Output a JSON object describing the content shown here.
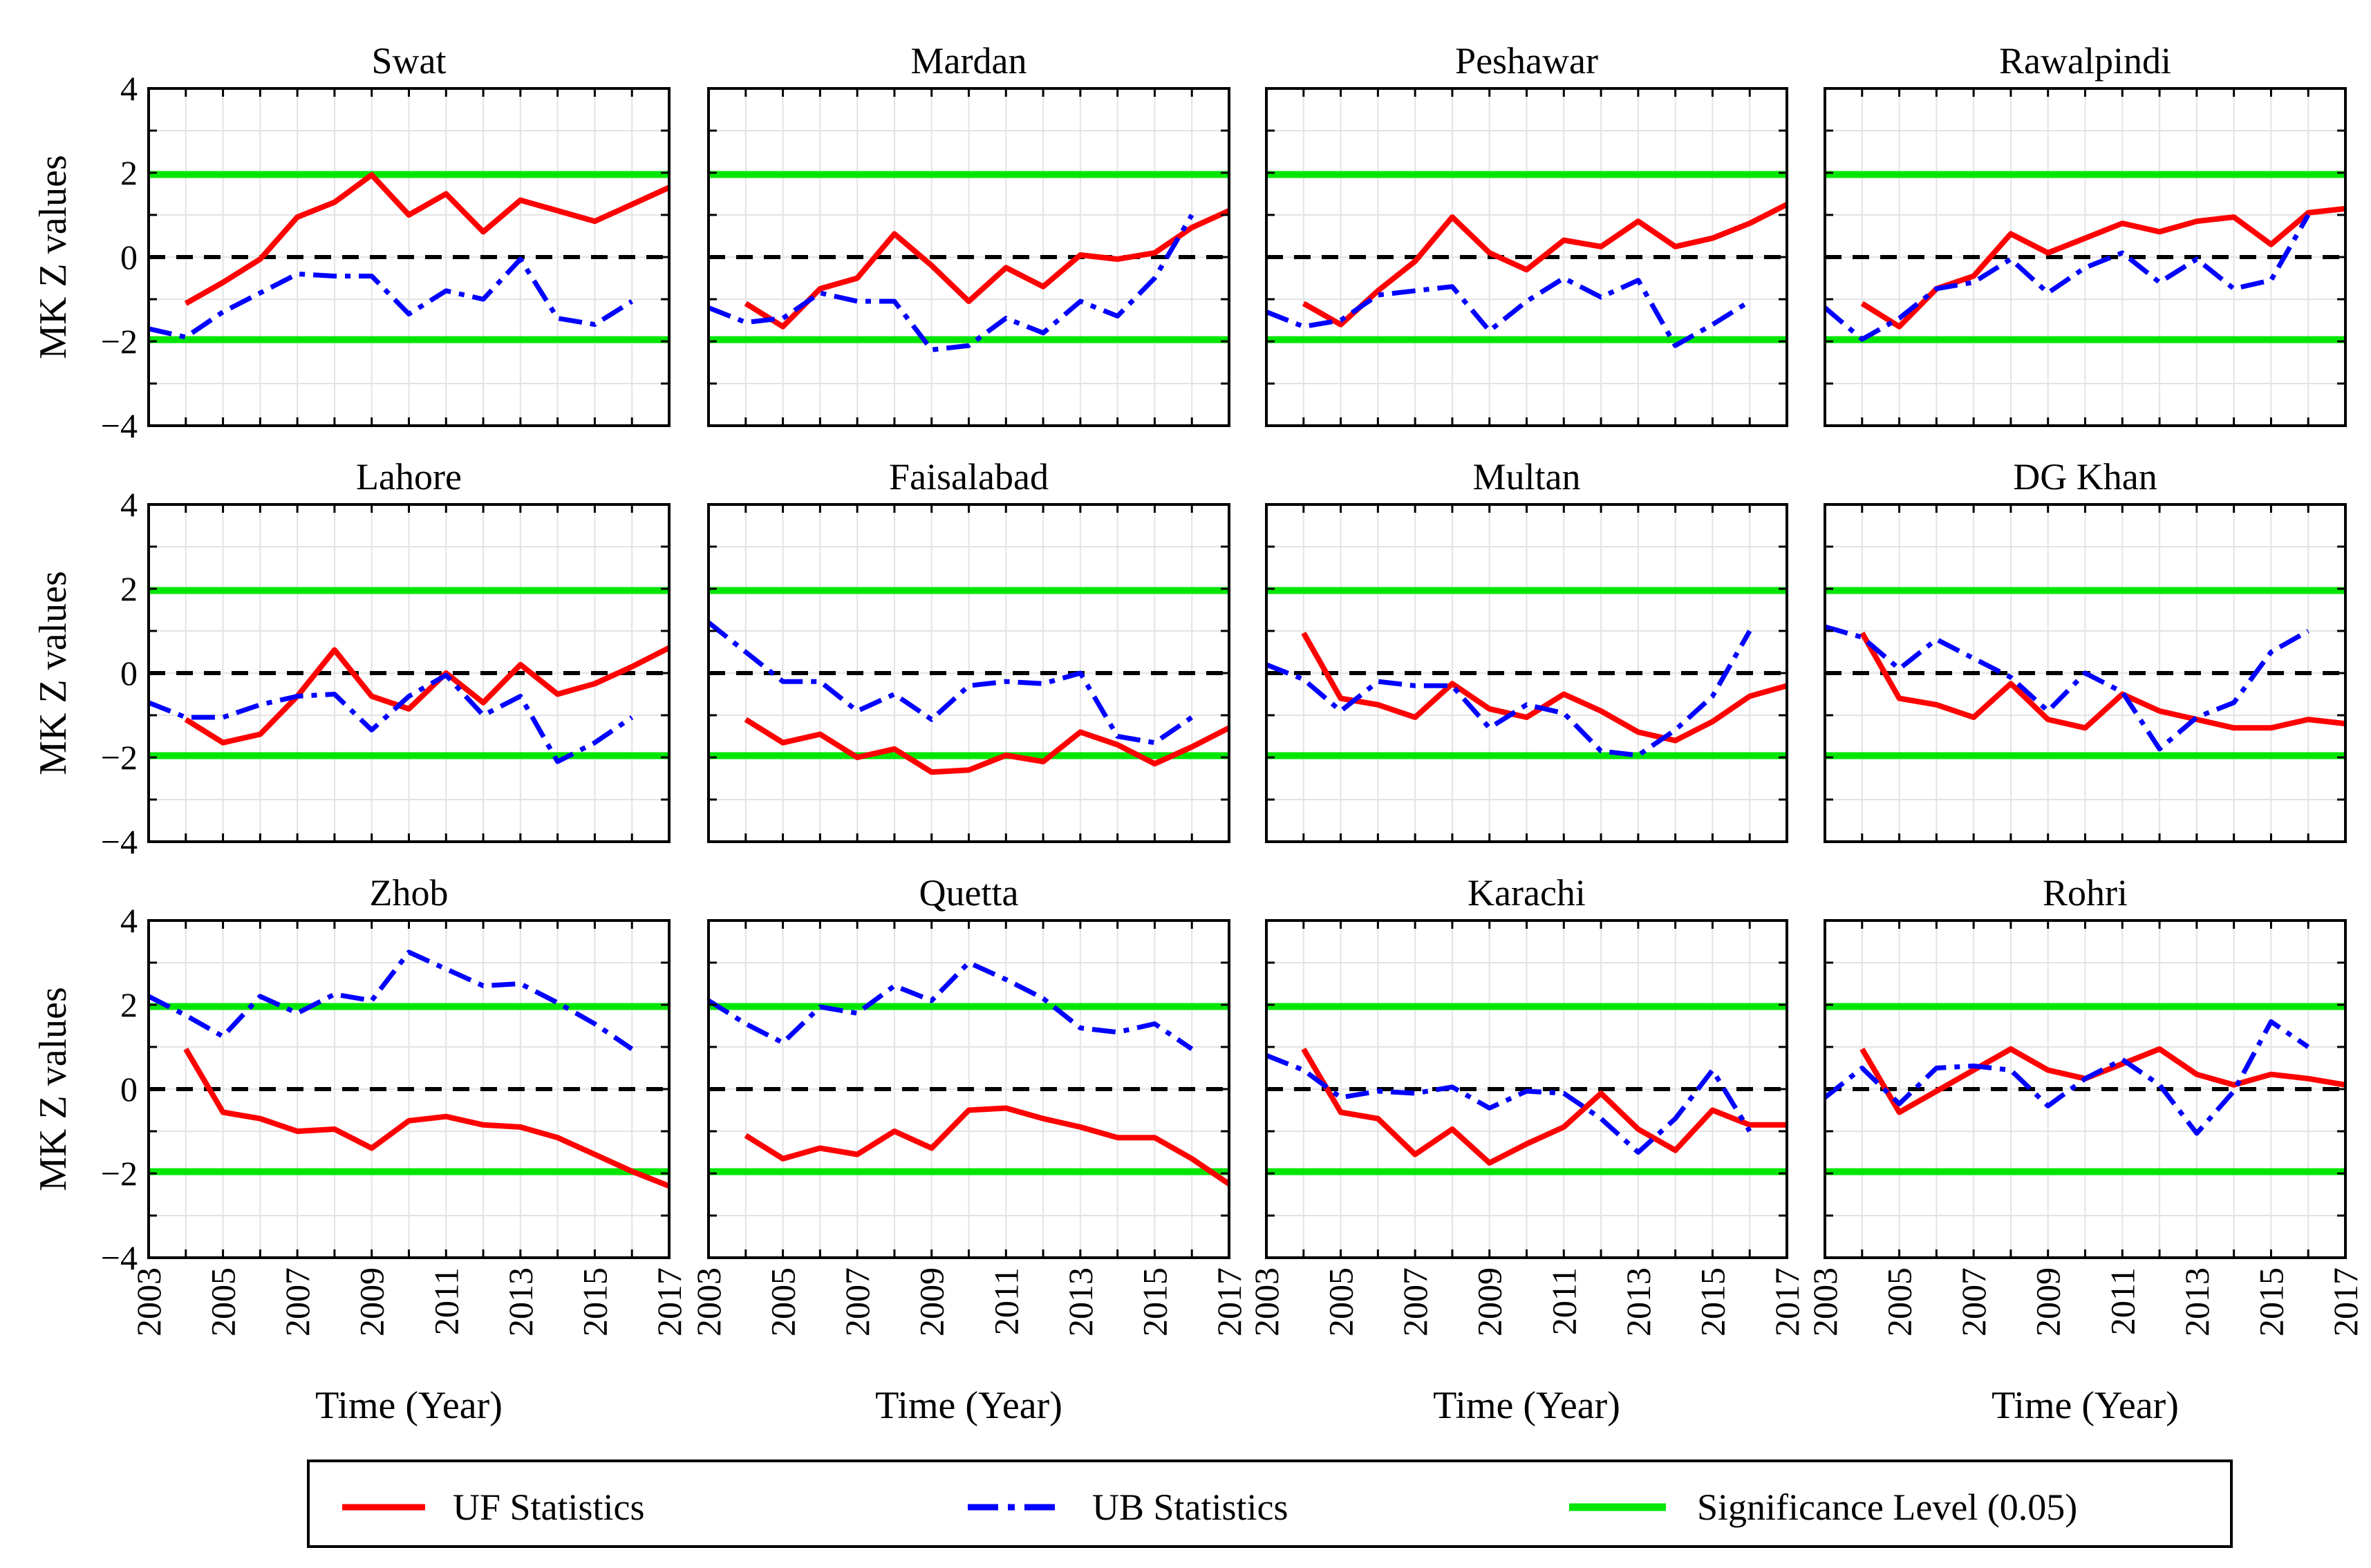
{
  "colors": {
    "uf": "#ff0000",
    "ub": "#0000ff",
    "significance": "#00e600",
    "zero": "#000000",
    "grid": "#e3e3e3",
    "frame": "#000000"
  },
  "chart_data": {
    "type": "line",
    "layout": "3x4 grid of panels",
    "ylabel": "MK Z values",
    "xlabel": "Time (Year)",
    "xlim": [
      2003,
      2017
    ],
    "ylim": [
      -4,
      4
    ],
    "x_ticks": [
      2003,
      2005,
      2007,
      2009,
      2011,
      2013,
      2015,
      2017
    ],
    "y_ticks": [
      -4,
      -2,
      0,
      2,
      4
    ],
    "y_tick_labels": [
      "−4",
      "−2",
      "0",
      "2",
      "4"
    ],
    "significance_level": 1.96,
    "legend": {
      "position": "bottom",
      "entries": [
        "UF Statistics",
        "UB Statistics",
        "Significance Level (0.05)"
      ]
    },
    "panels": [
      {
        "title": "Swat",
        "uf": {
          "x": [
            2004,
            2005,
            2006,
            2007,
            2008,
            2009,
            2010,
            2011,
            2012,
            2013,
            2014,
            2015,
            2016,
            2017
          ],
          "y": [
            -1.1,
            -0.6,
            -0.05,
            0.95,
            1.3,
            1.95,
            1.0,
            1.5,
            0.6,
            1.35,
            1.1,
            0.85,
            1.25,
            1.65
          ]
        },
        "ub": {
          "x": [
            2003,
            2004,
            2005,
            2006,
            2007,
            2008,
            2009,
            2010,
            2011,
            2012,
            2013,
            2014,
            2015,
            2016
          ],
          "y": [
            -1.7,
            -1.9,
            -1.3,
            -0.85,
            -0.4,
            -0.45,
            -0.45,
            -1.35,
            -0.8,
            -1.0,
            -0.05,
            -1.45,
            -1.6,
            -1.05
          ]
        }
      },
      {
        "title": "Mardan",
        "uf": {
          "x": [
            2004,
            2005,
            2006,
            2007,
            2008,
            2009,
            2010,
            2011,
            2012,
            2013,
            2014,
            2015,
            2016,
            2017
          ],
          "y": [
            -1.1,
            -1.65,
            -0.75,
            -0.5,
            0.55,
            -0.2,
            -1.05,
            -0.25,
            -0.7,
            0.05,
            -0.05,
            0.1,
            0.7,
            1.1
          ]
        },
        "ub": {
          "x": [
            2003,
            2004,
            2005,
            2006,
            2007,
            2008,
            2009,
            2010,
            2011,
            2012,
            2013,
            2014,
            2015,
            2016
          ],
          "y": [
            -1.2,
            -1.55,
            -1.45,
            -0.85,
            -1.05,
            -1.05,
            -2.2,
            -2.1,
            -1.45,
            -1.8,
            -1.05,
            -1.4,
            -0.5,
            1.0
          ]
        }
      },
      {
        "title": "Peshawar",
        "uf": {
          "x": [
            2004,
            2005,
            2006,
            2007,
            2008,
            2009,
            2010,
            2011,
            2012,
            2013,
            2014,
            2015,
            2016,
            2017
          ],
          "y": [
            -1.1,
            -1.6,
            -0.8,
            -0.1,
            0.95,
            0.1,
            -0.3,
            0.4,
            0.25,
            0.85,
            0.25,
            0.45,
            0.8,
            1.25
          ]
        },
        "ub": {
          "x": [
            2003,
            2004,
            2005,
            2006,
            2007,
            2008,
            2009,
            2010,
            2011,
            2012,
            2013,
            2014,
            2015,
            2016
          ],
          "y": [
            -1.3,
            -1.65,
            -1.5,
            -0.9,
            -0.8,
            -0.7,
            -1.75,
            -1.05,
            -0.5,
            -0.95,
            -0.55,
            -2.1,
            -1.6,
            -1.05
          ]
        }
      },
      {
        "title": "Rawalpindi",
        "uf": {
          "x": [
            2004,
            2005,
            2006,
            2007,
            2008,
            2009,
            2010,
            2011,
            2012,
            2013,
            2014,
            2015,
            2016,
            2017
          ],
          "y": [
            -1.1,
            -1.65,
            -0.75,
            -0.45,
            0.55,
            0.1,
            0.45,
            0.8,
            0.6,
            0.85,
            0.95,
            0.3,
            1.05,
            1.15
          ]
        },
        "ub": {
          "x": [
            2003,
            2004,
            2005,
            2006,
            2007,
            2008,
            2009,
            2010,
            2011,
            2012,
            2013,
            2014,
            2015,
            2016
          ],
          "y": [
            -1.2,
            -1.95,
            -1.45,
            -0.75,
            -0.6,
            -0.05,
            -0.85,
            -0.25,
            0.1,
            -0.6,
            -0.05,
            -0.75,
            -0.55,
            1.0
          ]
        }
      },
      {
        "title": "Lahore",
        "uf": {
          "x": [
            2004,
            2005,
            2006,
            2007,
            2008,
            2009,
            2010,
            2011,
            2012,
            2013,
            2014,
            2015,
            2016,
            2017
          ],
          "y": [
            -1.1,
            -1.65,
            -1.45,
            -0.55,
            0.55,
            -0.55,
            -0.85,
            0.0,
            -0.7,
            0.2,
            -0.5,
            -0.25,
            0.15,
            0.6
          ]
        },
        "ub": {
          "x": [
            2003,
            2004,
            2005,
            2006,
            2007,
            2008,
            2009,
            2010,
            2011,
            2012,
            2013,
            2014,
            2015,
            2016
          ],
          "y": [
            -0.7,
            -1.05,
            -1.05,
            -0.75,
            -0.55,
            -0.5,
            -1.35,
            -0.55,
            -0.05,
            -1.0,
            -0.55,
            -2.1,
            -1.65,
            -1.05
          ]
        }
      },
      {
        "title": "Faisalabad",
        "uf": {
          "x": [
            2004,
            2005,
            2006,
            2007,
            2008,
            2009,
            2010,
            2011,
            2012,
            2013,
            2014,
            2015,
            2016,
            2017
          ],
          "y": [
            -1.1,
            -1.65,
            -1.45,
            -2.0,
            -1.8,
            -2.35,
            -2.3,
            -1.95,
            -2.1,
            -1.4,
            -1.7,
            -2.15,
            -1.75,
            -1.3
          ]
        },
        "ub": {
          "x": [
            2003,
            2004,
            2005,
            2006,
            2007,
            2008,
            2009,
            2010,
            2011,
            2012,
            2013,
            2014,
            2015,
            2016
          ],
          "y": [
            1.2,
            0.5,
            -0.2,
            -0.2,
            -0.9,
            -0.5,
            -1.1,
            -0.3,
            -0.2,
            -0.25,
            0.0,
            -1.5,
            -1.65,
            -1.05
          ]
        }
      },
      {
        "title": "Multan",
        "uf": {
          "x": [
            2004,
            2005,
            2006,
            2007,
            2008,
            2009,
            2010,
            2011,
            2012,
            2013,
            2014,
            2015,
            2016,
            2017
          ],
          "y": [
            0.95,
            -0.6,
            -0.75,
            -1.05,
            -0.25,
            -0.85,
            -1.05,
            -0.5,
            -0.9,
            -1.4,
            -1.6,
            -1.15,
            -0.55,
            -0.3
          ]
        },
        "ub": {
          "x": [
            2003,
            2004,
            2005,
            2006,
            2007,
            2008,
            2009,
            2010,
            2011,
            2012,
            2013,
            2014,
            2015,
            2016
          ],
          "y": [
            0.2,
            -0.15,
            -0.9,
            -0.2,
            -0.3,
            -0.3,
            -1.3,
            -0.75,
            -0.95,
            -1.85,
            -1.95,
            -1.35,
            -0.55,
            1.0
          ]
        }
      },
      {
        "title": "DG Khan",
        "uf": {
          "x": [
            2004,
            2005,
            2006,
            2007,
            2008,
            2009,
            2010,
            2011,
            2012,
            2013,
            2014,
            2015,
            2016,
            2017
          ],
          "y": [
            0.95,
            -0.6,
            -0.75,
            -1.05,
            -0.25,
            -1.1,
            -1.3,
            -0.5,
            -0.9,
            -1.1,
            -1.3,
            -1.3,
            -1.1,
            -1.2
          ]
        },
        "ub": {
          "x": [
            2003,
            2004,
            2005,
            2006,
            2007,
            2008,
            2009,
            2010,
            2011,
            2012,
            2013,
            2014,
            2015,
            2016
          ],
          "y": [
            1.1,
            0.85,
            0.1,
            0.8,
            0.35,
            -0.1,
            -0.9,
            0.0,
            -0.45,
            -1.8,
            -1.05,
            -0.7,
            0.5,
            1.0
          ]
        }
      },
      {
        "title": "Zhob",
        "uf": {
          "x": [
            2004,
            2005,
            2006,
            2007,
            2008,
            2009,
            2010,
            2011,
            2012,
            2013,
            2014,
            2015,
            2016,
            2017
          ],
          "y": [
            0.95,
            -0.55,
            -0.7,
            -1.0,
            -0.95,
            -1.4,
            -0.75,
            -0.65,
            -0.85,
            -0.9,
            -1.15,
            -1.55,
            -1.95,
            -2.3
          ]
        },
        "ub": {
          "x": [
            2003,
            2004,
            2005,
            2006,
            2007,
            2008,
            2009,
            2010,
            2011,
            2012,
            2013,
            2014,
            2015,
            2016
          ],
          "y": [
            2.2,
            1.75,
            1.25,
            2.2,
            1.8,
            2.25,
            2.1,
            3.25,
            2.85,
            2.45,
            2.5,
            2.05,
            1.55,
            0.95
          ]
        }
      },
      {
        "title": "Quetta",
        "uf": {
          "x": [
            2004,
            2005,
            2006,
            2007,
            2008,
            2009,
            2010,
            2011,
            2012,
            2013,
            2014,
            2015,
            2016,
            2017
          ],
          "y": [
            -1.1,
            -1.65,
            -1.4,
            -1.55,
            -1.0,
            -1.4,
            -0.5,
            -0.45,
            -0.7,
            -0.9,
            -1.15,
            -1.15,
            -1.65,
            -2.25
          ]
        },
        "ub": {
          "x": [
            2003,
            2004,
            2005,
            2006,
            2007,
            2008,
            2009,
            2010,
            2011,
            2012,
            2013,
            2014,
            2015,
            2016
          ],
          "y": [
            2.1,
            1.55,
            1.1,
            1.95,
            1.8,
            2.45,
            2.1,
            3.0,
            2.6,
            2.15,
            1.45,
            1.35,
            1.55,
            0.95
          ]
        }
      },
      {
        "title": "Karachi",
        "uf": {
          "x": [
            2004,
            2005,
            2006,
            2007,
            2008,
            2009,
            2010,
            2011,
            2012,
            2013,
            2014,
            2015,
            2016,
            2017
          ],
          "y": [
            0.95,
            -0.55,
            -0.7,
            -1.55,
            -0.95,
            -1.75,
            -1.3,
            -0.9,
            -0.1,
            -0.95,
            -1.45,
            -0.5,
            -0.85,
            -0.85
          ]
        },
        "ub": {
          "x": [
            2003,
            2004,
            2005,
            2006,
            2007,
            2008,
            2009,
            2010,
            2011,
            2012,
            2013,
            2014,
            2015,
            2016
          ],
          "y": [
            0.8,
            0.45,
            -0.2,
            -0.05,
            -0.1,
            0.05,
            -0.45,
            -0.05,
            -0.1,
            -0.7,
            -1.5,
            -0.7,
            0.45,
            -1.0
          ]
        }
      },
      {
        "title": "Rohri",
        "uf": {
          "x": [
            2004,
            2005,
            2006,
            2007,
            2008,
            2009,
            2010,
            2011,
            2012,
            2013,
            2014,
            2015,
            2016,
            2017
          ],
          "y": [
            0.95,
            -0.55,
            -0.05,
            0.45,
            0.95,
            0.45,
            0.25,
            0.6,
            0.95,
            0.35,
            0.1,
            0.35,
            0.25,
            0.1
          ]
        },
        "ub": {
          "x": [
            2003,
            2004,
            2005,
            2006,
            2007,
            2008,
            2009,
            2010,
            2011,
            2012,
            2013,
            2014,
            2015,
            2016
          ],
          "y": [
            -0.2,
            0.5,
            -0.35,
            0.5,
            0.55,
            0.45,
            -0.4,
            0.25,
            0.7,
            0.1,
            -1.05,
            -0.05,
            1.6,
            1.0
          ]
        }
      }
    ]
  }
}
